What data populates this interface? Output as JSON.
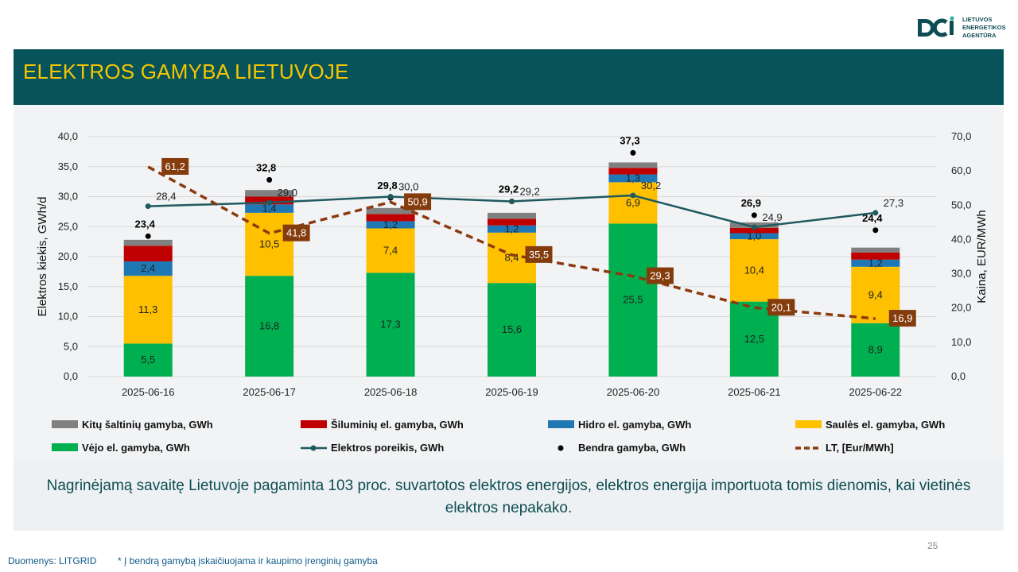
{
  "logo": {
    "lines": [
      "LIETUVOS",
      "ENERGETIKOS",
      "AGENTŪRA"
    ],
    "color": "#0e4d53"
  },
  "header": {
    "title": "ELEKTROS GAMYBA LIETUVOJE"
  },
  "summary": {
    "text": "Nagrinėjamą savaitę Lietuvoje pagaminta 103 proc. suvartotos elektros energijos, elektros energija importuota tomis dienomis, kai vietinės elektros nepakako."
  },
  "footer": {
    "source": "Duomenys: LITGRID",
    "note": "* Į bendrą gamybą įskaičiuojama ir kaupimo įrenginių gamyba",
    "page": "25"
  },
  "chart_data": {
    "type": "bar",
    "stacked": true,
    "categories": [
      "2025-06-16",
      "2025-06-17",
      "2025-06-18",
      "2025-06-19",
      "2025-06-20",
      "2025-06-21",
      "2025-06-22"
    ],
    "ylabel": "Elektros kiekis, GWh/d",
    "y2label": "Kaina, EUR/MWh",
    "ylim": [
      0,
      40
    ],
    "y2lim": [
      0,
      70
    ],
    "yticks": [
      "0,0",
      "5,0",
      "10,0",
      "15,0",
      "20,0",
      "25,0",
      "30,0",
      "35,0",
      "40,0"
    ],
    "y2ticks": [
      "0,0",
      "10,0",
      "20,0",
      "30,0",
      "40,0",
      "50,0",
      "60,0",
      "70,0"
    ],
    "grid": true,
    "legend_position": "bottom",
    "series": [
      {
        "name": "Vėjo el. gamyba, GWh",
        "color": "#00b050",
        "values": [
          5.5,
          16.8,
          17.3,
          15.6,
          25.5,
          12.5,
          8.9
        ],
        "labels": [
          "5,5",
          "16,8",
          "17,3",
          "15,6",
          "25,5",
          "12,5",
          "8,9"
        ]
      },
      {
        "name": "Saulės el. gamyba, GWh",
        "color": "#ffc000",
        "values": [
          11.3,
          10.5,
          7.4,
          8.4,
          6.9,
          10.4,
          9.4
        ],
        "labels": [
          "11,3",
          "10,5",
          "7,4",
          "8,4",
          "6,9",
          "10,4",
          "9,4"
        ]
      },
      {
        "name": "Hidro el. gamyba, GWh",
        "color": "#1f78b4",
        "values": [
          2.4,
          1.4,
          1.2,
          1.2,
          1.3,
          1.0,
          1.2
        ],
        "labels": [
          "2,4",
          "1,4",
          "1,2",
          "1,2",
          "1,3",
          "1,0",
          "1,2"
        ]
      },
      {
        "name": "Šiluminių el. gamyba, GWh",
        "color": "#c00000",
        "values": [
          2.6,
          1.3,
          1.2,
          1.1,
          1.1,
          0.9,
          1.2
        ],
        "labels": []
      },
      {
        "name": "Kitų šaltinių gamyba,  GWh",
        "color": "#808080",
        "values": [
          1.0,
          1.1,
          1.0,
          1.0,
          0.9,
          0.9,
          0.8
        ],
        "labels": []
      }
    ],
    "bendra_gamyba": {
      "name": "Bendra gamyba, GWh",
      "values": [
        23.4,
        32.8,
        29.8,
        29.2,
        37.3,
        26.9,
        24.4
      ],
      "labels": [
        "23,4",
        "32,8",
        "29,8",
        "29,2",
        "37,3",
        "26,9",
        "24,4"
      ]
    },
    "elektros_poreikis": {
      "name": "Elektros poreikis, GWh",
      "color": "#1f5a5f",
      "values": [
        28.4,
        29.0,
        30.0,
        29.2,
        30.2,
        24.9,
        27.3
      ],
      "labels": [
        "28,4",
        "29,0",
        "30,0",
        "29,2",
        "30,2",
        "24,9",
        "27,3"
      ]
    },
    "kaina": {
      "name": "LT, [Eur/MWh]",
      "color": "#8b3a0f",
      "axis": "right",
      "values": [
        61.2,
        41.8,
        50.9,
        35.5,
        29.3,
        20.1,
        16.9
      ],
      "labels": [
        "61,2",
        "41,8",
        "50,9",
        "35,5",
        "29,3",
        "20,1",
        "16,9"
      ]
    }
  }
}
